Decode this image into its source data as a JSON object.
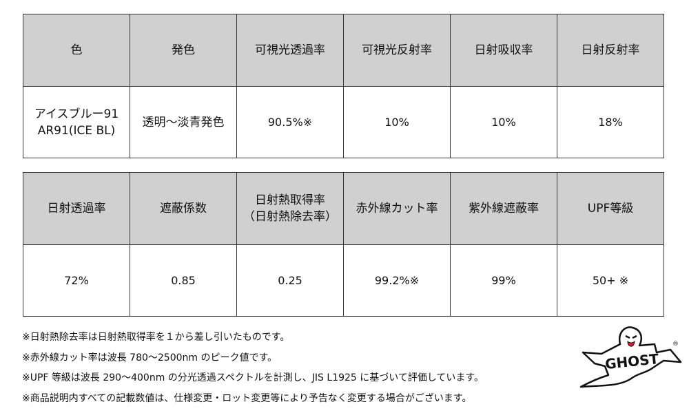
{
  "table1": {
    "headers": [
      "色",
      "発色",
      "可視光透過率",
      "可視光反射率",
      "日射吸収率",
      "日射反射率"
    ],
    "row": [
      "アイスブルー91\nAR91(ICE BL)",
      "透明～淡青発色",
      "90.5%※",
      "10%",
      "10%",
      "18%"
    ]
  },
  "table2": {
    "headers": [
      "日射透過率",
      "遮蔽係数",
      "日射熱取得率\n（日射熱除去率）",
      "赤外線カット率",
      "紫外線遮蔽率",
      "UPF等級"
    ],
    "row": [
      "72%",
      "0.85",
      "0.25",
      "99.2%※",
      "99%",
      "50+ ※"
    ]
  },
  "notes": [
    "※日射熱除去率は日射熱取得率を１から差し引いたものです。",
    "※赤外線カット率は波長 780～2500nm のピーク値です。",
    "※UPF 等級は波長 290～400nm の分光透過スペクトルを計測し、JIS L1925 に基づいて評価しています。",
    "※商品説明内すべての記載数値は、仕様変更・ロット変更等により予告なく変更する場合がございます。"
  ],
  "logo": {
    "text": "GHOST",
    "mark": "®"
  },
  "colors": {
    "header_bg": "#d0d0d0",
    "border": "#333333",
    "tongue": "#e0202a"
  }
}
